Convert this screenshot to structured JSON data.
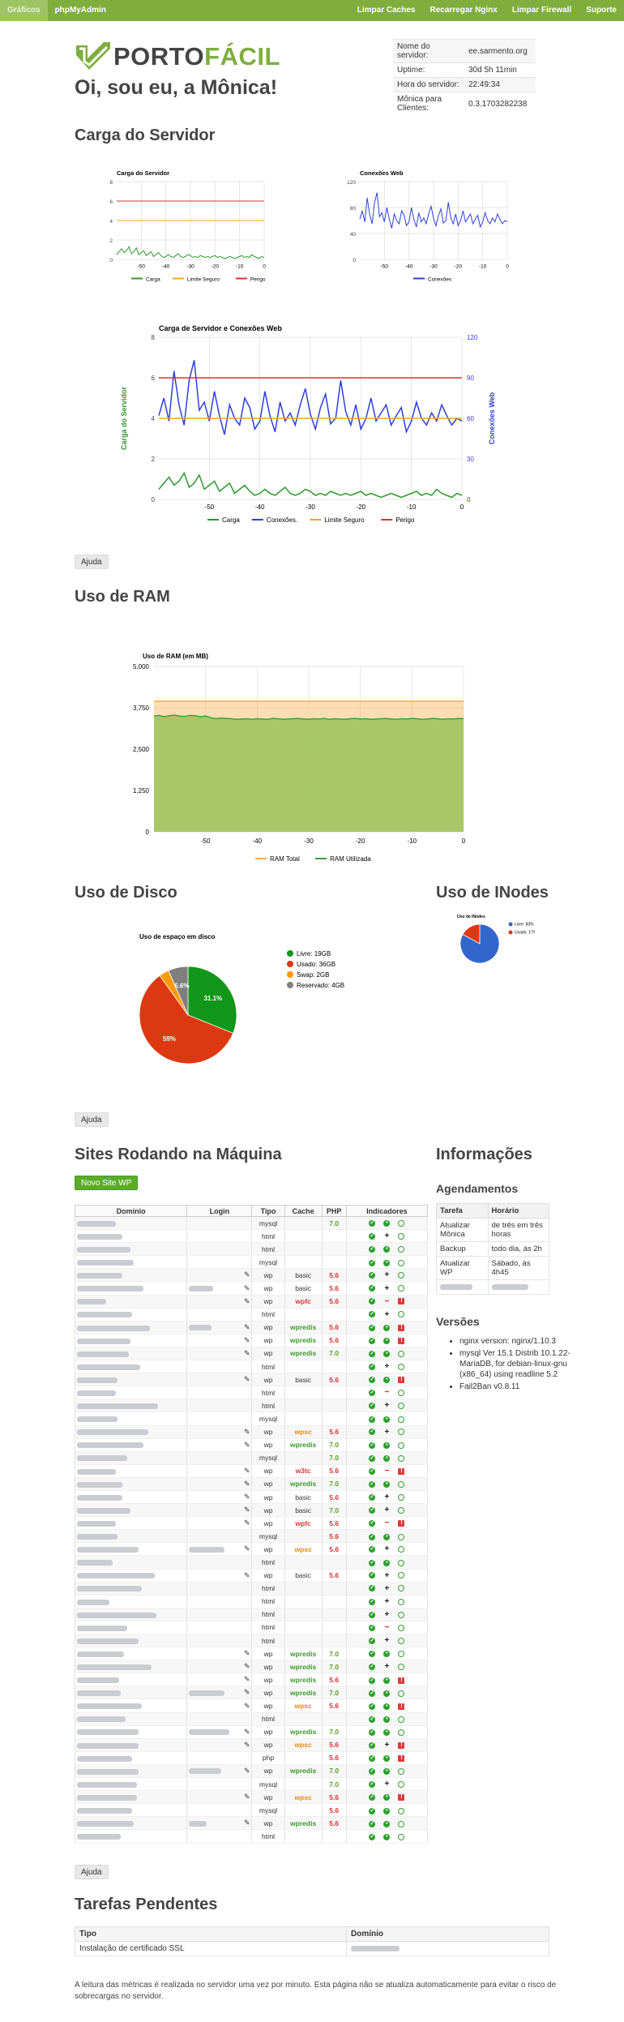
{
  "nav": {
    "graphs": "Gráficos",
    "phpmyadmin": "phpMyAdmin",
    "clear_caches": "Limpar Caches",
    "reload_nginx": "Recarregar Nginx",
    "clear_firewall": "Limpar Firewall",
    "support": "Suporte"
  },
  "logo": {
    "part1": "PORTO",
    "part2": "FÁCIL"
  },
  "greeting": "Oi, sou eu, a Mônica!",
  "server_info": [
    {
      "label": "Nome do servidor:",
      "value": "ee.sarmento.org"
    },
    {
      "label": "Uptime:",
      "value": "30d 5h 11min"
    },
    {
      "label": "Hora do servidor:",
      "value": "22:49:34"
    },
    {
      "label": "Mônica para Clientes:",
      "value": "0.3.1703282238"
    }
  ],
  "sections": {
    "load": "Carga do Servidor",
    "ram": "Uso de RAM",
    "disk": "Uso de Disco",
    "inodes": "Uso de INodes",
    "sites": "Sites Rodando na Máquina",
    "info": "Informações",
    "schedules": "Agendamentos",
    "versions": "Versões",
    "tasks": "Tarefas Pendentes"
  },
  "buttons": {
    "help": "Ajuda",
    "new_site": "Novo Site WP"
  },
  "chart_data": [
    {
      "type": "line",
      "title": "Carga do Servidor",
      "x_ticks": [
        -50,
        -40,
        -30,
        -20,
        -10,
        0
      ],
      "ylim": [
        0,
        8
      ],
      "y_ticks": [
        0,
        2,
        4,
        6,
        8
      ],
      "series": [
        {
          "name": "Carga",
          "color": "#2e9a2e",
          "values": [
            0.5,
            0.8,
            1.1,
            0.7,
            0.9,
            1.3,
            0.6,
            0.8,
            1.2,
            0.5,
            0.7,
            0.9,
            0.4,
            0.6,
            0.8,
            0.3,
            0.5,
            0.7,
            0.4,
            0.2,
            0.3,
            0.5,
            0.3,
            0.2,
            0.4,
            0.6,
            0.3,
            0.2,
            0.3,
            0.5,
            0.4,
            0.2,
            0.3,
            0.2,
            0.4,
            0.3,
            0.2,
            0.3,
            0.2,
            0.3,
            0.4,
            0.2,
            0.3,
            0.2,
            0.1,
            0.2,
            0.3,
            0.2,
            0.1,
            0.2,
            0.3,
            0.4,
            0.2,
            0.3,
            0.2,
            0.5,
            0.3,
            0.2,
            0.1,
            0.3,
            0.2
          ]
        },
        {
          "name": "Limite Seguro",
          "color": "#f5a623",
          "values": [
            4
          ]
        },
        {
          "name": "Perigo",
          "color": "#e03030",
          "values": [
            6
          ]
        }
      ]
    },
    {
      "type": "line",
      "title": "Conexões Web",
      "x_ticks": [
        -50,
        -40,
        -30,
        -20,
        -10,
        0
      ],
      "ylim": [
        0,
        120
      ],
      "y_ticks": [
        0,
        40,
        80,
        120
      ],
      "series": [
        {
          "name": "Conexões",
          "color": "#2f3fe0",
          "values": [
            62,
            75,
            58,
            95,
            70,
            55,
            88,
            103,
            66,
            72,
            58,
            80,
            62,
            48,
            70,
            60,
            55,
            75,
            68,
            52,
            58,
            80,
            62,
            50,
            72,
            58,
            64,
            55,
            70,
            82,
            63,
            52,
            68,
            78,
            56,
            60,
            88,
            65,
            55,
            70,
            52,
            60,
            75,
            58,
            64,
            70,
            55,
            62,
            68,
            50,
            58,
            72,
            60,
            55,
            64,
            58,
            70,
            62,
            55,
            60,
            58
          ]
        }
      ]
    },
    {
      "type": "line",
      "title": "Carga de Servidor e Conexões Web",
      "ylabel": "Carga do Servidor",
      "y2label": "Conexões Web",
      "x_ticks": [
        -50,
        -40,
        -30,
        -20,
        -10,
        0
      ],
      "ylim": [
        0,
        8
      ],
      "y_ticks": [
        0,
        2,
        4,
        6,
        8
      ],
      "y2lim": [
        0,
        120
      ],
      "y2_ticks": [
        0,
        30,
        60,
        90,
        120
      ],
      "series": [
        {
          "name": "Carga",
          "color": "#2e9a2e",
          "axis": "left",
          "values": [
            0.5,
            0.8,
            1.1,
            0.7,
            0.9,
            1.3,
            0.6,
            0.8,
            1.2,
            0.5,
            0.7,
            0.9,
            0.4,
            0.6,
            0.8,
            0.3,
            0.5,
            0.7,
            0.4,
            0.2,
            0.3,
            0.5,
            0.3,
            0.2,
            0.4,
            0.6,
            0.3,
            0.2,
            0.3,
            0.5,
            0.4,
            0.2,
            0.3,
            0.2,
            0.4,
            0.3,
            0.2,
            0.3,
            0.2,
            0.3,
            0.4,
            0.2,
            0.3,
            0.2,
            0.1,
            0.2,
            0.3,
            0.2,
            0.1,
            0.2,
            0.3,
            0.4,
            0.2,
            0.3,
            0.2,
            0.5,
            0.3,
            0.2,
            0.1,
            0.3,
            0.2
          ]
        },
        {
          "name": "Conexões.",
          "color": "#2f3fe0",
          "axis": "right",
          "values": [
            62,
            75,
            58,
            95,
            70,
            55,
            88,
            103,
            66,
            72,
            58,
            80,
            62,
            48,
            70,
            60,
            55,
            75,
            68,
            52,
            58,
            80,
            62,
            50,
            72,
            58,
            64,
            55,
            70,
            82,
            63,
            52,
            68,
            78,
            56,
            60,
            88,
            65,
            55,
            70,
            52,
            60,
            75,
            58,
            64,
            70,
            55,
            62,
            68,
            50,
            58,
            72,
            60,
            55,
            64,
            58,
            70,
            62,
            55,
            60,
            58
          ]
        },
        {
          "name": "Limite Seguro",
          "color": "#f5a623",
          "axis": "left",
          "values": [
            4
          ]
        },
        {
          "name": "Perigo",
          "color": "#e03030",
          "axis": "left",
          "values": [
            6
          ]
        }
      ]
    },
    {
      "type": "area",
      "title": "Uso de RAM (em MB)",
      "x_ticks": [
        -50,
        -40,
        -30,
        -20,
        -10,
        0
      ],
      "ylim": [
        0,
        5000
      ],
      "y_ticks": [
        0,
        1250,
        2500,
        3750,
        5000
      ],
      "series": [
        {
          "name": "RAM Total",
          "color": "#f5b041",
          "values": [
            3950
          ]
        },
        {
          "name": "RAM Utilizada",
          "color": "#3fa03f",
          "values": [
            3500,
            3520,
            3480,
            3510,
            3530,
            3500,
            3490,
            3520,
            3510,
            3480,
            3500,
            3450,
            3420,
            3440,
            3430,
            3420,
            3400,
            3410,
            3420,
            3400,
            3420,
            3410,
            3400,
            3430,
            3420,
            3400,
            3410,
            3420,
            3430,
            3410,
            3400,
            3420,
            3410,
            3430,
            3400,
            3420,
            3410,
            3400,
            3420,
            3430,
            3410,
            3420,
            3400,
            3410,
            3420,
            3430,
            3410,
            3400,
            3420,
            3410,
            3430,
            3420,
            3400,
            3410,
            3430,
            3420,
            3400,
            3420,
            3410,
            3430,
            3420
          ]
        }
      ]
    },
    {
      "type": "pie",
      "title": "Uso de espaço em disco",
      "slices": [
        {
          "label": "Livre: 19GB",
          "value": 31.1,
          "color": "#109618"
        },
        {
          "label": "Usado: 36GB",
          "value": 59,
          "color": "#dc3912"
        },
        {
          "label": "Swap: 2GB",
          "value": 3.3,
          "color": "#ff9900"
        },
        {
          "label": "Reservado: 4GB",
          "value": 6.6,
          "color": "#7f7f7f"
        }
      ],
      "shown_labels": [
        "31.1%",
        "59%",
        "6.6%"
      ]
    },
    {
      "type": "pie",
      "title": "Uso de INodes",
      "slices": [
        {
          "label": "Livre: 83%",
          "value": 83,
          "color": "#3366cc"
        },
        {
          "label": "Usado: 17%",
          "value": 17,
          "color": "#dc3912"
        }
      ],
      "shown_labels": [
        "83%",
        "17%"
      ]
    }
  ],
  "sites_table": {
    "headers": [
      "Domínio",
      "Login",
      "Tipo",
      "Cache",
      "PHP",
      "Indicadores"
    ],
    "rows": [
      {
        "d": 48,
        "login": 0,
        "edit": false,
        "type": "mysql",
        "cache": "",
        "php": "7.0",
        "i2": "ok"
      },
      {
        "d": 56,
        "login": 0,
        "edit": false,
        "type": "html",
        "cache": "",
        "php": "",
        "i2": "plus"
      },
      {
        "d": 66,
        "login": 0,
        "edit": false,
        "type": "html",
        "cache": "",
        "php": "",
        "i2": "ok"
      },
      {
        "d": 70,
        "login": 0,
        "edit": false,
        "type": "mysql",
        "cache": "",
        "php": "",
        "i2": "ok"
      },
      {
        "d": 56,
        "login": 0,
        "edit": true,
        "type": "wp",
        "cache": "basic",
        "php": "5.6",
        "i2": "plus"
      },
      {
        "d": 82,
        "login": 30,
        "edit": true,
        "type": "wp",
        "cache": "basic",
        "php": "5.6",
        "i2": "plus"
      },
      {
        "d": 36,
        "login": 0,
        "edit": true,
        "type": "wp",
        "cache": "wpfc",
        "php": "5.6",
        "i2": "minus",
        "bad": true
      },
      {
        "d": 68,
        "login": 0,
        "edit": false,
        "type": "html",
        "cache": "",
        "php": "",
        "i2": "plus"
      },
      {
        "d": 90,
        "login": 28,
        "edit": true,
        "type": "wp",
        "cache": "wpredis",
        "php": "5.6",
        "i2": "ok",
        "bad": true
      },
      {
        "d": 66,
        "login": 0,
        "edit": true,
        "type": "wp",
        "cache": "wpredis",
        "php": "5.6",
        "i2": "ok",
        "bad": true
      },
      {
        "d": 64,
        "login": 0,
        "edit": true,
        "type": "wp",
        "cache": "wpredis",
        "php": "7.0",
        "i2": "ok"
      },
      {
        "d": 78,
        "login": 0,
        "edit": false,
        "type": "html",
        "cache": "",
        "php": "",
        "i2": "plus"
      },
      {
        "d": 50,
        "login": 0,
        "edit": true,
        "type": "wp",
        "cache": "basic",
        "php": "5.6",
        "i2": "ok",
        "bad": true
      },
      {
        "d": 48,
        "login": 0,
        "edit": false,
        "type": "html",
        "cache": "",
        "php": "",
        "i2": "minus"
      },
      {
        "d": 100,
        "login": 0,
        "edit": false,
        "type": "html",
        "cache": "",
        "php": "",
        "i2": "plus"
      },
      {
        "d": 50,
        "login": 0,
        "edit": false,
        "type": "mysql",
        "cache": "",
        "php": "",
        "i2": "ok"
      },
      {
        "d": 88,
        "login": 0,
        "edit": true,
        "type": "wp",
        "cache": "wpsc",
        "php": "5.6",
        "i2": "plus"
      },
      {
        "d": 82,
        "login": 0,
        "edit": true,
        "type": "wp",
        "cache": "wpredis",
        "php": "7.0",
        "i2": "ok"
      },
      {
        "d": 62,
        "login": 0,
        "edit": false,
        "type": "mysql",
        "cache": "",
        "php": "7.0",
        "i2": "ok"
      },
      {
        "d": 48,
        "login": 0,
        "edit": true,
        "type": "wp",
        "cache": "w3tc",
        "php": "5.6",
        "i2": "minus",
        "bad": true
      },
      {
        "d": 56,
        "login": 0,
        "edit": true,
        "type": "wp",
        "cache": "wpredis",
        "php": "7.0",
        "i2": "ok"
      },
      {
        "d": 56,
        "login": 0,
        "edit": true,
        "type": "wp",
        "cache": "basic",
        "php": "5.6",
        "i2": "plus"
      },
      {
        "d": 66,
        "login": 0,
        "edit": true,
        "type": "wp",
        "cache": "basic",
        "php": "7.0",
        "i2": "plus"
      },
      {
        "d": 48,
        "login": 0,
        "edit": true,
        "type": "wp",
        "cache": "wpfc",
        "php": "5.6",
        "i2": "minus",
        "bad": true
      },
      {
        "d": 50,
        "login": 0,
        "edit": false,
        "type": "mysql",
        "cache": "",
        "php": "5.6",
        "i2": "ok"
      },
      {
        "d": 76,
        "login": 44,
        "edit": true,
        "type": "wp",
        "cache": "wpsc",
        "php": "5.6",
        "i2": "plus"
      },
      {
        "d": 44,
        "login": 0,
        "edit": false,
        "type": "html",
        "cache": "",
        "php": "",
        "i2": "ok"
      },
      {
        "d": 96,
        "login": 0,
        "edit": true,
        "type": "wp",
        "cache": "basic",
        "php": "5.6",
        "i2": "plus"
      },
      {
        "d": 80,
        "login": 0,
        "edit": false,
        "type": "html",
        "cache": "",
        "php": "",
        "i2": "plus"
      },
      {
        "d": 40,
        "login": 0,
        "edit": false,
        "type": "html",
        "cache": "",
        "php": "",
        "i2": "plus"
      },
      {
        "d": 98,
        "login": 0,
        "edit": false,
        "type": "html",
        "cache": "",
        "php": "",
        "i2": "plus"
      },
      {
        "d": 62,
        "login": 0,
        "edit": false,
        "type": "html",
        "cache": "",
        "php": "",
        "i2": "minus"
      },
      {
        "d": 76,
        "login": 0,
        "edit": false,
        "type": "html",
        "cache": "",
        "php": "",
        "i2": "plus"
      },
      {
        "d": 58,
        "login": 0,
        "edit": true,
        "type": "wp",
        "cache": "wpredis",
        "php": "7.0",
        "i2": "ok"
      },
      {
        "d": 92,
        "login": 0,
        "edit": true,
        "type": "wp",
        "cache": "wpredis",
        "php": "7.0",
        "i2": "plus"
      },
      {
        "d": 52,
        "login": 0,
        "edit": true,
        "type": "wp",
        "cache": "wpredis",
        "php": "5.6",
        "i2": "ok",
        "bad": true
      },
      {
        "d": 54,
        "login": 44,
        "edit": true,
        "type": "wp",
        "cache": "wpredis",
        "php": "7.0",
        "i2": "ok"
      },
      {
        "d": 80,
        "login": 0,
        "edit": true,
        "type": "wp",
        "cache": "wpsc",
        "php": "5.6",
        "i2": "ok",
        "bad": true
      },
      {
        "d": 60,
        "login": 0,
        "edit": false,
        "type": "html",
        "cache": "",
        "php": "",
        "i2": "ok"
      },
      {
        "d": 76,
        "login": 50,
        "edit": true,
        "type": "wp",
        "cache": "wpredis",
        "php": "7.0",
        "i2": "ok"
      },
      {
        "d": 76,
        "login": 0,
        "edit": true,
        "type": "wp",
        "cache": "wpsc",
        "php": "5.6",
        "i2": "plus",
        "bad": true
      },
      {
        "d": 68,
        "login": 0,
        "edit": false,
        "type": "php",
        "cache": "",
        "php": "5.6",
        "i2": "ok",
        "bad": true
      },
      {
        "d": 76,
        "login": 40,
        "edit": true,
        "type": "wp",
        "cache": "wpredis",
        "php": "7.0",
        "i2": "ok"
      },
      {
        "d": 74,
        "login": 0,
        "edit": false,
        "type": "mysql",
        "cache": "",
        "php": "7.0",
        "i2": "plus"
      },
      {
        "d": 74,
        "login": 0,
        "edit": true,
        "type": "wp",
        "cache": "wpsc",
        "php": "5.6",
        "i2": "ok",
        "bad": true
      },
      {
        "d": 68,
        "login": 0,
        "edit": false,
        "type": "mysql",
        "cache": "",
        "php": "5.6",
        "i2": "ok"
      },
      {
        "d": 70,
        "login": 22,
        "edit": true,
        "type": "wp",
        "cache": "wpredis",
        "php": "5.6",
        "i2": "ok"
      },
      {
        "d": 54,
        "login": 0,
        "edit": false,
        "type": "html",
        "cache": "",
        "php": "",
        "i2": "ok"
      }
    ]
  },
  "schedules": {
    "headers": [
      "Tarefa",
      "Horário"
    ],
    "rows": [
      [
        "Atualizar Mônica",
        "de três em três horas"
      ],
      [
        "Backup",
        "todo dia, às 2h"
      ],
      [
        "Atualizar WP",
        "Sábado, às 4h45"
      ]
    ]
  },
  "versions": [
    "nginx version: nginx/1.10.3",
    "mysql Ver 15.1 Distrib 10.1.22-MariaDB, for debian-linux-gnu (x86_64) using readline 5.2",
    "Fail2Ban v0.8.11"
  ],
  "tasks": {
    "headers": [
      "Tipo",
      "Domínio"
    ],
    "rows": [
      [
        "Instalação de certificado SSL",
        ""
      ]
    ]
  },
  "footer": "A leitura das métricas é realizada no servidor uma vez por minuto. Esta página não se atualiza automaticamente para evitar o risco de sobrecargas no servidor."
}
